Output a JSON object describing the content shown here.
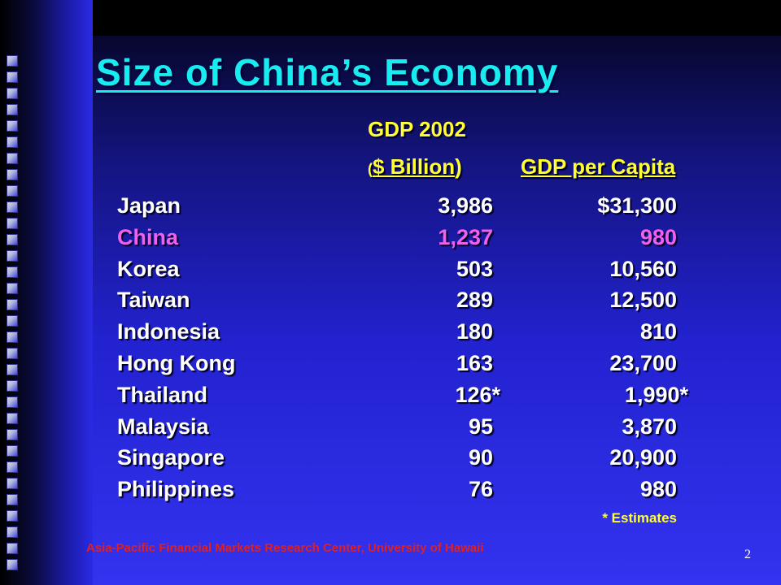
{
  "slide": {
    "title": "Size of China’s Economy",
    "page_number": "2",
    "source": "Asia-Pacific Financial Markets Research Center, University of Hawaii",
    "footnote": "* Estimates"
  },
  "headers": {
    "gdp_year": "GDP 2002",
    "billion_open": "(",
    "billion_text": "$ Billion",
    "billion_close": ")",
    "per_capita": "GDP per Capita"
  },
  "rows": [
    {
      "country": "Japan",
      "gdp": "3,986",
      "per_capita": "$31,300"
    },
    {
      "country": "China",
      "gdp": "1,237",
      "per_capita": "980"
    },
    {
      "country": "Korea",
      "gdp": "503",
      "per_capita": "10,560"
    },
    {
      "country": "Taiwan",
      "gdp": "289",
      "per_capita": "12,500"
    },
    {
      "country": "Indonesia",
      "gdp": "180",
      "per_capita": "810"
    },
    {
      "country": "Hong Kong",
      "gdp": "163",
      "per_capita": "23,700"
    },
    {
      "country": "Thailand",
      "gdp": "126*",
      "per_capita": "1,990*"
    },
    {
      "country": "Malaysia",
      "gdp": "95",
      "per_capita": "3,870"
    },
    {
      "country": "Singapore",
      "gdp": "90",
      "per_capita": "20,900"
    },
    {
      "country": "Philippines",
      "gdp": "76",
      "per_capita": "980"
    }
  ],
  "colors": {
    "title": "#18ecf0",
    "header": "#ffff33",
    "highlight_row": "#f060f0",
    "source": "#e02020"
  }
}
